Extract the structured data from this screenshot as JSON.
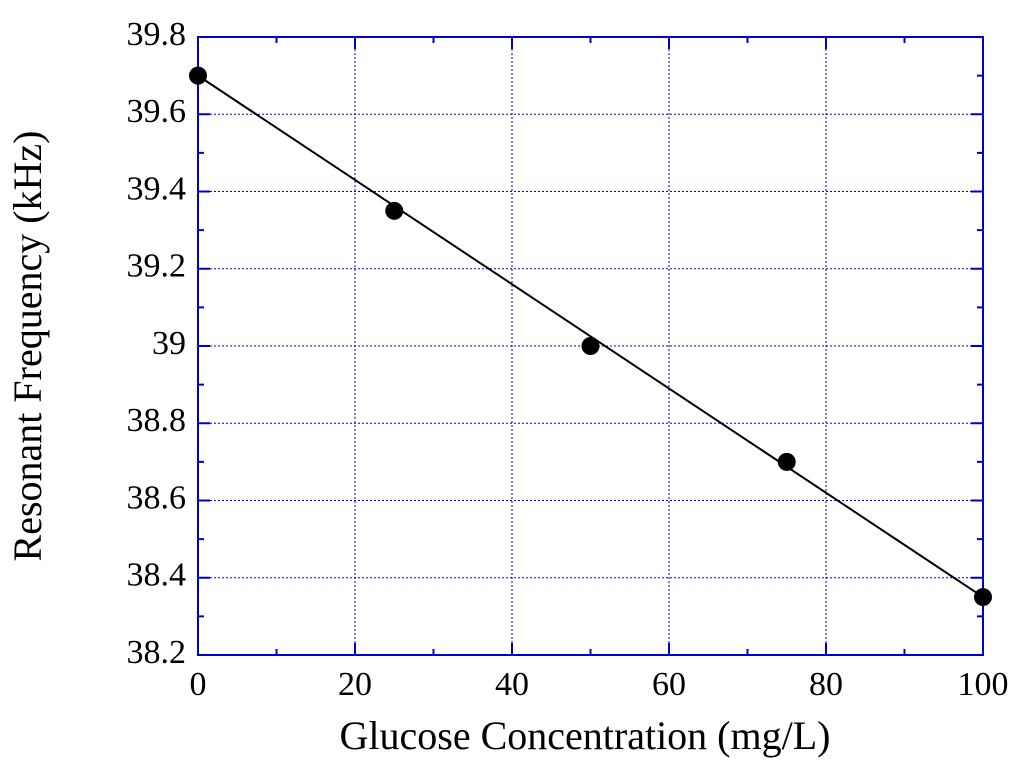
{
  "chart_data": {
    "type": "scatter",
    "x_label": "Glucose Concentration (mg/L)",
    "y_label": "Resonant Frequency (kHz)",
    "x": [
      0,
      25,
      50,
      75,
      100
    ],
    "values": [
      39.7,
      39.35,
      39.0,
      38.7,
      38.35
    ],
    "color": "#000000",
    "fit": {
      "x": [
        0,
        100
      ],
      "values": [
        39.7,
        38.35
      ],
      "color": "#000000"
    },
    "xlim": [
      0,
      100
    ],
    "xticks": [
      0,
      20,
      40,
      60,
      80,
      100
    ],
    "ylim": [
      38.2,
      39.8
    ],
    "yticks": [
      38.2,
      38.4,
      38.6,
      38.8,
      39,
      39.2,
      39.4,
      39.6,
      39.8
    ],
    "grid": true,
    "grid_color": "#0000cc"
  }
}
